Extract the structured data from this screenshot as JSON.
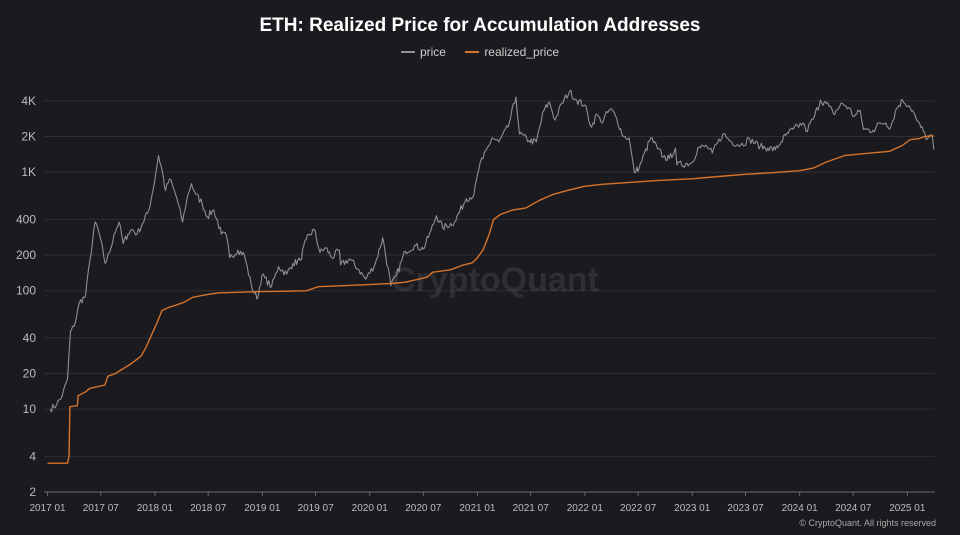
{
  "chart_data": {
    "type": "line",
    "title": "ETH: Realized Price for Accumulation Addresses",
    "xlabel": "",
    "ylabel": "",
    "y_scale": "log",
    "ylim": [
      2,
      6000
    ],
    "xlim": [
      "2016-12-20",
      "2025-04-05"
    ],
    "grid": true,
    "legend_position": "top",
    "y_ticks": [
      2,
      4,
      10,
      20,
      40,
      100,
      200,
      400,
      1000,
      2000,
      4000
    ],
    "y_tick_labels": [
      "2",
      "4",
      "10",
      "20",
      "40",
      "100",
      "200",
      "400",
      "1K",
      "2K",
      "4K"
    ],
    "x_ticks": [
      "2017-01-01",
      "2017-07-01",
      "2018-01-01",
      "2018-07-01",
      "2019-01-01",
      "2019-07-01",
      "2020-01-01",
      "2020-07-01",
      "2021-01-01",
      "2021-07-01",
      "2022-01-01",
      "2022-07-01",
      "2023-01-01",
      "2023-07-01",
      "2024-01-01",
      "2024-07-01",
      "2025-01-01"
    ],
    "x_tick_labels": [
      "2017 01",
      "2017 07",
      "2018 01",
      "2018 07",
      "2019 01",
      "2019 07",
      "2020 01",
      "2020 07",
      "2021 01",
      "2021 07",
      "2022 01",
      "2022 07",
      "2023 01",
      "2023 07",
      "2024 01",
      "2024 07",
      "2025 01"
    ],
    "series": [
      {
        "name": "price",
        "color": "#8e8e95",
        "points": [
          [
            "2017-01-10",
            10
          ],
          [
            "2017-02-01",
            11
          ],
          [
            "2017-02-20",
            13
          ],
          [
            "2017-03-10",
            18
          ],
          [
            "2017-03-20",
            45
          ],
          [
            "2017-04-01",
            50
          ],
          [
            "2017-04-20",
            80
          ],
          [
            "2017-05-10",
            90
          ],
          [
            "2017-05-25",
            180
          ],
          [
            "2017-06-12",
            380
          ],
          [
            "2017-06-25",
            310
          ],
          [
            "2017-07-16",
            170
          ],
          [
            "2017-07-31",
            210
          ],
          [
            "2017-08-15",
            300
          ],
          [
            "2017-09-01",
            380
          ],
          [
            "2017-09-15",
            250
          ],
          [
            "2017-10-01",
            300
          ],
          [
            "2017-10-15",
            330
          ],
          [
            "2017-11-01",
            300
          ],
          [
            "2017-11-20",
            370
          ],
          [
            "2017-12-10",
            470
          ],
          [
            "2017-12-25",
            700
          ],
          [
            "2018-01-13",
            1380
          ],
          [
            "2018-01-25",
            1050
          ],
          [
            "2018-02-06",
            700
          ],
          [
            "2018-02-20",
            880
          ],
          [
            "2018-03-15",
            620
          ],
          [
            "2018-04-05",
            380
          ],
          [
            "2018-04-20",
            600
          ],
          [
            "2018-05-05",
            800
          ],
          [
            "2018-05-20",
            650
          ],
          [
            "2018-06-10",
            550
          ],
          [
            "2018-06-28",
            420
          ],
          [
            "2018-07-20",
            480
          ],
          [
            "2018-08-15",
            300
          ],
          [
            "2018-09-01",
            290
          ],
          [
            "2018-09-12",
            190
          ],
          [
            "2018-10-10",
            220
          ],
          [
            "2018-11-01",
            200
          ],
          [
            "2018-11-25",
            110
          ],
          [
            "2018-12-14",
            85
          ],
          [
            "2018-12-31",
            135
          ],
          [
            "2019-02-01",
            108
          ],
          [
            "2019-02-25",
            160
          ],
          [
            "2019-03-25",
            138
          ],
          [
            "2019-04-15",
            170
          ],
          [
            "2019-05-10",
            180
          ],
          [
            "2019-05-30",
            270
          ],
          [
            "2019-06-26",
            330
          ],
          [
            "2019-07-16",
            210
          ],
          [
            "2019-08-05",
            230
          ],
          [
            "2019-08-25",
            190
          ],
          [
            "2019-09-20",
            220
          ],
          [
            "2019-09-24",
            165
          ],
          [
            "2019-10-25",
            185
          ],
          [
            "2019-11-25",
            150
          ],
          [
            "2019-12-18",
            125
          ],
          [
            "2020-01-20",
            170
          ],
          [
            "2020-02-14",
            280
          ],
          [
            "2020-03-13",
            110
          ],
          [
            "2020-04-01",
            135
          ],
          [
            "2020-05-01",
            215
          ],
          [
            "2020-06-01",
            240
          ],
          [
            "2020-07-01",
            225
          ],
          [
            "2020-07-27",
            320
          ],
          [
            "2020-08-15",
            430
          ],
          [
            "2020-09-05",
            340
          ],
          [
            "2020-10-15",
            380
          ],
          [
            "2020-11-24",
            600
          ],
          [
            "2020-12-20",
            640
          ],
          [
            "2021-01-10",
            1200
          ],
          [
            "2021-01-20",
            1300
          ],
          [
            "2021-02-20",
            1950
          ],
          [
            "2021-03-15",
            1800
          ],
          [
            "2021-04-15",
            2400
          ],
          [
            "2021-05-12",
            4300
          ],
          [
            "2021-05-24",
            2100
          ],
          [
            "2021-06-25",
            1850
          ],
          [
            "2021-07-20",
            1800
          ],
          [
            "2021-08-14",
            3300
          ],
          [
            "2021-09-03",
            3900
          ],
          [
            "2021-09-22",
            2750
          ],
          [
            "2021-10-15",
            3800
          ],
          [
            "2021-11-10",
            4800
          ],
          [
            "2021-12-04",
            4050
          ],
          [
            "2021-12-31",
            3700
          ],
          [
            "2022-01-24",
            2400
          ],
          [
            "2022-02-10",
            3100
          ],
          [
            "2022-02-25",
            2650
          ],
          [
            "2022-03-29",
            3400
          ],
          [
            "2022-04-15",
            3000
          ],
          [
            "2022-05-12",
            2000
          ],
          [
            "2022-05-31",
            1950
          ],
          [
            "2022-06-18",
            1000
          ],
          [
            "2022-07-05",
            1100
          ],
          [
            "2022-08-13",
            1950
          ],
          [
            "2022-09-05",
            1580
          ],
          [
            "2022-09-25",
            1350
          ],
          [
            "2022-10-15",
            1300
          ],
          [
            "2022-11-05",
            1600
          ],
          [
            "2022-11-10",
            1150
          ],
          [
            "2022-12-31",
            1200
          ],
          [
            "2023-01-20",
            1600
          ],
          [
            "2023-02-20",
            1650
          ],
          [
            "2023-03-10",
            1450
          ],
          [
            "2023-04-15",
            2100
          ],
          [
            "2023-05-15",
            1800
          ],
          [
            "2023-06-15",
            1700
          ],
          [
            "2023-07-15",
            1900
          ],
          [
            "2023-08-20",
            1650
          ],
          [
            "2023-09-15",
            1600
          ],
          [
            "2023-10-10",
            1550
          ],
          [
            "2023-10-30",
            1800
          ],
          [
            "2023-11-15",
            2050
          ],
          [
            "2023-12-10",
            2300
          ],
          [
            "2024-01-12",
            2600
          ],
          [
            "2024-01-23",
            2200
          ],
          [
            "2024-02-20",
            2950
          ],
          [
            "2024-03-12",
            4050
          ],
          [
            "2024-04-10",
            3600
          ],
          [
            "2024-04-25",
            3100
          ],
          [
            "2024-05-25",
            3800
          ],
          [
            "2024-06-15",
            3500
          ],
          [
            "2024-07-05",
            2950
          ],
          [
            "2024-07-25",
            3300
          ],
          [
            "2024-08-05",
            2300
          ],
          [
            "2024-09-06",
            2250
          ],
          [
            "2024-10-01",
            2600
          ],
          [
            "2024-10-20",
            2600
          ],
          [
            "2024-11-05",
            2400
          ],
          [
            "2024-11-25",
            3450
          ],
          [
            "2024-12-16",
            4050
          ],
          [
            "2025-01-06",
            3650
          ],
          [
            "2025-01-20",
            3300
          ],
          [
            "2025-02-03",
            2700
          ],
          [
            "2025-02-25",
            2200
          ],
          [
            "2025-03-10",
            1900
          ],
          [
            "2025-03-25",
            2050
          ],
          [
            "2025-04-01",
            1550
          ]
        ]
      },
      {
        "name": "realized_price",
        "color": "#d7742b",
        "points": [
          [
            "2017-01-01",
            3.5
          ],
          [
            "2017-03-10",
            3.5
          ],
          [
            "2017-03-15",
            4
          ],
          [
            "2017-03-18",
            10.5
          ],
          [
            "2017-04-12",
            10.7
          ],
          [
            "2017-04-15",
            13
          ],
          [
            "2017-05-10",
            14
          ],
          [
            "2017-05-25",
            15
          ],
          [
            "2017-07-15",
            16
          ],
          [
            "2017-07-25",
            19
          ],
          [
            "2017-08-20",
            20
          ],
          [
            "2017-09-15",
            22
          ],
          [
            "2017-10-10",
            24
          ],
          [
            "2017-11-15",
            28
          ],
          [
            "2017-12-01",
            33
          ],
          [
            "2017-12-20",
            42
          ],
          [
            "2018-01-10",
            55
          ],
          [
            "2018-01-25",
            68
          ],
          [
            "2018-02-15",
            72
          ],
          [
            "2018-03-10",
            75
          ],
          [
            "2018-04-10",
            80
          ],
          [
            "2018-05-10",
            88
          ],
          [
            "2018-06-10",
            91
          ],
          [
            "2018-07-10",
            94
          ],
          [
            "2018-08-10",
            96
          ],
          [
            "2018-10-10",
            97
          ],
          [
            "2018-12-10",
            98
          ],
          [
            "2019-04-01",
            99
          ],
          [
            "2019-06-01",
            100
          ],
          [
            "2019-07-10",
            108
          ],
          [
            "2019-12-01",
            112
          ],
          [
            "2020-03-15",
            115
          ],
          [
            "2020-05-01",
            118
          ],
          [
            "2020-06-15",
            125
          ],
          [
            "2020-07-15",
            130
          ],
          [
            "2020-08-01",
            143
          ],
          [
            "2020-10-01",
            150
          ],
          [
            "2020-11-15",
            165
          ],
          [
            "2020-12-15",
            172
          ],
          [
            "2021-01-01",
            190
          ],
          [
            "2021-01-20",
            220
          ],
          [
            "2021-02-10",
            300
          ],
          [
            "2021-02-25",
            400
          ],
          [
            "2021-03-20",
            440
          ],
          [
            "2021-05-01",
            480
          ],
          [
            "2021-06-15",
            500
          ],
          [
            "2021-08-01",
            580
          ],
          [
            "2021-09-15",
            650
          ],
          [
            "2021-11-01",
            700
          ],
          [
            "2021-12-31",
            760
          ],
          [
            "2022-03-01",
            790
          ],
          [
            "2022-06-01",
            820
          ],
          [
            "2022-09-01",
            850
          ],
          [
            "2022-12-31",
            880
          ],
          [
            "2023-03-31",
            920
          ],
          [
            "2023-06-30",
            960
          ],
          [
            "2023-09-30",
            990
          ],
          [
            "2023-12-31",
            1030
          ],
          [
            "2024-02-15",
            1080
          ],
          [
            "2024-04-01",
            1220
          ],
          [
            "2024-06-01",
            1380
          ],
          [
            "2024-08-15",
            1440
          ],
          [
            "2024-11-01",
            1500
          ],
          [
            "2024-12-15",
            1680
          ],
          [
            "2025-01-10",
            1880
          ],
          [
            "2025-02-10",
            1920
          ],
          [
            "2025-03-01",
            2000
          ],
          [
            "2025-04-01",
            2030
          ]
        ]
      }
    ]
  },
  "watermark": "CryptoQuant",
  "footer": "© CryptoQuant. All rights reserved"
}
